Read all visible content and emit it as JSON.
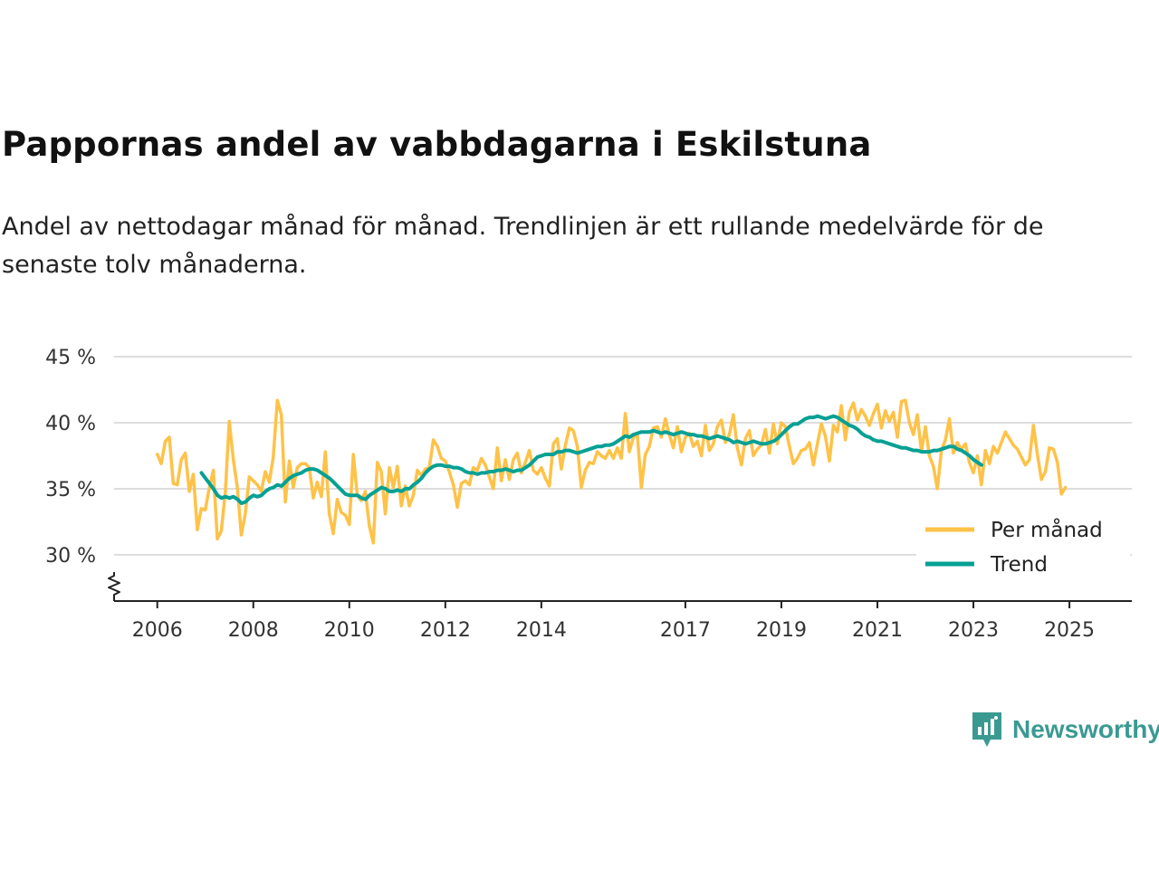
{
  "title": "Pappornas andel av vabbdagarna i Eskilstuna",
  "subtitle": "Andel av nettodagar månad för månad. Trendlinjen är ett rullande medelvärde för de senaste tolv månaderna.",
  "brand": "Newsworthy",
  "colors": {
    "monthly": "#FFC248",
    "trend": "#06A094",
    "grid": "#dddddd",
    "axis": "#222222",
    "brand": "#3a9a92"
  },
  "chart_data": {
    "type": "line",
    "title": "Pappornas andel av vabbdagarna i Eskilstuna",
    "xlabel": "",
    "ylabel": "",
    "ylim": [
      26.5,
      45
    ],
    "xlim": [
      2005.1,
      2026.3
    ],
    "y_ticks": [
      30,
      35,
      40,
      45
    ],
    "y_tick_labels": [
      "30 %",
      "35 %",
      "40 %",
      "45 %"
    ],
    "x_ticks": [
      2006,
      2008,
      2010,
      2012,
      2014,
      2017,
      2019,
      2021,
      2023,
      2025
    ],
    "x_tick_labels": [
      "2006",
      "2008",
      "2010",
      "2012",
      "2014",
      "2017",
      "2019",
      "2021",
      "2023",
      "2025"
    ],
    "axis_break": true,
    "legend_position": "bottom-right",
    "series": [
      {
        "name": "Per månad",
        "start": 2006.0,
        "step": 0.08333,
        "values": [
          37.6,
          36.9,
          38.6,
          38.9,
          35.4,
          35.3,
          37.2,
          37.7,
          34.8,
          36.1,
          31.9,
          33.5,
          33.4,
          35.1,
          36.4,
          31.2,
          31.8,
          34.7,
          40.1,
          37.2,
          35.1,
          31.5,
          33.1,
          35.9,
          35.6,
          35.3,
          34.8,
          36.3,
          35.5,
          37.4,
          41.7,
          40.6,
          34.0,
          37.1,
          35.1,
          36.6,
          36.9,
          36.9,
          36.6,
          34.3,
          35.5,
          34.4,
          37.8,
          33.1,
          31.6,
          34.2,
          33.2,
          33.0,
          32.3,
          37.6,
          34.5,
          34.1,
          34.8,
          32.2,
          30.9,
          37.0,
          36.3,
          33.1,
          36.6,
          35.1,
          36.7,
          33.7,
          35.2,
          33.7,
          34.5,
          36.4,
          36.0,
          36.5,
          36.6,
          38.7,
          38.2,
          37.3,
          37.1,
          36.3,
          35.3,
          33.6,
          35.4,
          35.6,
          35.3,
          36.6,
          36.4,
          37.3,
          36.8,
          35.9,
          35.0,
          38.1,
          35.6,
          37.2,
          35.7,
          37.2,
          37.7,
          36.2,
          37.0,
          37.9,
          36.4,
          36.1,
          36.6,
          35.8,
          35.2,
          38.4,
          38.8,
          36.5,
          38.3,
          39.6,
          39.4,
          38.2,
          35.1,
          36.4,
          37.0,
          36.9,
          37.8,
          37.5,
          37.3,
          37.9,
          37.3,
          38.1,
          37.3,
          40.7,
          37.8,
          38.9,
          39.1,
          35.1,
          37.6,
          38.2,
          39.6,
          39.7,
          38.9,
          40.3,
          39.1,
          38.1,
          39.7,
          37.8,
          38.9,
          39.2,
          38.2,
          38.6,
          37.5,
          39.8,
          37.9,
          38.4,
          39.7,
          40.2,
          38.5,
          39.1,
          40.6,
          38.1,
          36.8,
          38.8,
          39.4,
          37.5,
          38.0,
          38.3,
          39.5,
          37.7,
          39.9,
          38.4,
          40.0,
          39.7,
          38.2,
          36.9,
          37.3,
          37.9,
          38.0,
          38.5,
          36.8,
          38.4,
          39.9,
          39.0,
          37.1,
          39.8,
          39.3,
          41.3,
          38.7,
          40.8,
          41.5,
          40.2,
          41.0,
          40.5,
          39.8,
          40.7,
          41.4,
          39.6,
          40.9,
          40.1,
          40.8,
          38.9,
          41.6,
          41.7,
          40.0,
          39.1,
          40.6,
          37.8,
          39.7,
          37.5,
          36.7,
          35.0,
          37.9,
          38.7,
          40.3,
          37.7,
          38.5,
          38.0,
          38.4,
          37.0,
          36.2,
          37.5,
          35.3,
          37.9,
          36.9,
          38.2,
          37.7,
          38.5,
          39.3,
          38.8,
          38.3,
          38.0,
          37.4,
          36.8,
          37.2,
          39.8,
          37.6,
          35.7,
          36.3,
          38.1,
          38.0,
          37.0,
          34.6,
          35.1
        ]
      },
      {
        "name": "Trend",
        "start": 2006.92,
        "step": 0.08333,
        "values": [
          36.2,
          35.8,
          35.4,
          35.0,
          34.5,
          34.3,
          34.4,
          34.3,
          34.4,
          34.2,
          33.9,
          34.0,
          34.3,
          34.5,
          34.4,
          34.5,
          34.8,
          35.0,
          35.1,
          35.3,
          35.2,
          35.5,
          35.8,
          36.0,
          36.1,
          36.2,
          36.4,
          36.5,
          36.5,
          36.4,
          36.2,
          36.0,
          35.8,
          35.5,
          35.2,
          34.9,
          34.6,
          34.5,
          34.5,
          34.5,
          34.3,
          34.2,
          34.5,
          34.7,
          34.9,
          35.1,
          35.0,
          34.8,
          34.8,
          34.9,
          34.8,
          35.0,
          35.0,
          35.3,
          35.5,
          35.8,
          36.2,
          36.5,
          36.7,
          36.8,
          36.8,
          36.7,
          36.7,
          36.6,
          36.6,
          36.5,
          36.3,
          36.2,
          36.2,
          36.1,
          36.2,
          36.2,
          36.3,
          36.3,
          36.4,
          36.4,
          36.5,
          36.4,
          36.3,
          36.4,
          36.4,
          36.6,
          36.8,
          37.1,
          37.4,
          37.5,
          37.6,
          37.6,
          37.6,
          37.8,
          37.8,
          37.9,
          37.9,
          37.8,
          37.7,
          37.8,
          37.9,
          38.0,
          38.1,
          38.2,
          38.2,
          38.3,
          38.3,
          38.4,
          38.6,
          38.8,
          39.0,
          38.9,
          39.1,
          39.2,
          39.3,
          39.3,
          39.3,
          39.4,
          39.3,
          39.2,
          39.3,
          39.2,
          39.1,
          39.2,
          39.3,
          39.2,
          39.1,
          39.1,
          39.0,
          39.0,
          38.9,
          38.8,
          38.9,
          39.0,
          38.9,
          38.8,
          38.7,
          38.5,
          38.6,
          38.5,
          38.4,
          38.5,
          38.6,
          38.5,
          38.4,
          38.4,
          38.5,
          38.6,
          38.8,
          39.1,
          39.4,
          39.7,
          39.9,
          39.9,
          40.1,
          40.3,
          40.4,
          40.4,
          40.5,
          40.4,
          40.3,
          40.4,
          40.5,
          40.4,
          40.2,
          40.0,
          39.8,
          39.7,
          39.5,
          39.2,
          39.0,
          38.9,
          38.7,
          38.6,
          38.6,
          38.5,
          38.4,
          38.3,
          38.2,
          38.1,
          38.1,
          38.0,
          37.9,
          37.9,
          37.8,
          37.8,
          37.8,
          37.9,
          37.9,
          38.0,
          38.1,
          38.2,
          38.2,
          38.0,
          37.9,
          37.7,
          37.5,
          37.2,
          37.0,
          36.8
        ]
      }
    ]
  }
}
